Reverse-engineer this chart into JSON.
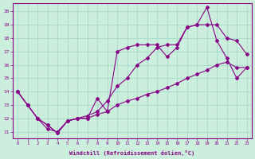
{
  "xlabel": "Windchill (Refroidissement éolien,°C)",
  "bg_color": "#cceedd",
  "grid_color": "#aaddcc",
  "line_color": "#880088",
  "xlim": [
    -0.5,
    23.5
  ],
  "ylim": [
    10.5,
    20.6
  ],
  "xticks": [
    0,
    1,
    2,
    3,
    4,
    5,
    6,
    7,
    8,
    9,
    10,
    11,
    12,
    13,
    14,
    15,
    16,
    17,
    18,
    19,
    20,
    21,
    22,
    23
  ],
  "yticks": [
    11,
    12,
    13,
    14,
    15,
    16,
    17,
    18,
    19,
    20
  ],
  "line1_x": [
    0,
    1,
    2,
    3,
    4,
    5,
    6,
    7,
    8,
    9,
    10,
    11,
    12,
    13,
    14,
    15,
    16,
    17,
    18,
    19,
    20,
    21,
    22,
    23
  ],
  "line1_y": [
    14,
    13,
    12,
    11.2,
    11.0,
    11.8,
    12.0,
    12.0,
    13.5,
    12.5,
    17.0,
    17.3,
    17.5,
    17.5,
    17.5,
    16.6,
    17.3,
    18.8,
    19.0,
    20.3,
    17.8,
    16.5,
    15.0,
    15.8
  ],
  "line2_x": [
    0,
    1,
    2,
    3,
    4,
    5,
    6,
    7,
    8,
    9,
    10,
    11,
    12,
    13,
    14,
    15,
    16,
    17,
    18,
    19,
    20,
    21,
    22,
    23
  ],
  "line2_y": [
    14,
    13,
    12,
    11.5,
    10.9,
    11.8,
    12.0,
    12.0,
    12.3,
    12.5,
    13.0,
    13.3,
    13.5,
    13.8,
    14.0,
    14.3,
    14.6,
    15.0,
    15.3,
    15.6,
    16.0,
    16.2,
    15.8,
    15.8
  ],
  "line3_x": [
    0,
    1,
    2,
    3,
    4,
    5,
    6,
    7,
    8,
    9,
    10,
    11,
    12,
    13,
    14,
    15,
    16,
    17,
    18,
    19,
    20,
    21,
    22,
    23
  ],
  "line3_y": [
    14,
    13,
    12,
    11.5,
    10.9,
    11.8,
    12.0,
    12.2,
    12.5,
    13.3,
    14.4,
    15.0,
    16.0,
    16.5,
    17.3,
    17.5,
    17.5,
    18.8,
    19.0,
    19.0,
    19.0,
    18.0,
    17.8,
    16.8
  ]
}
